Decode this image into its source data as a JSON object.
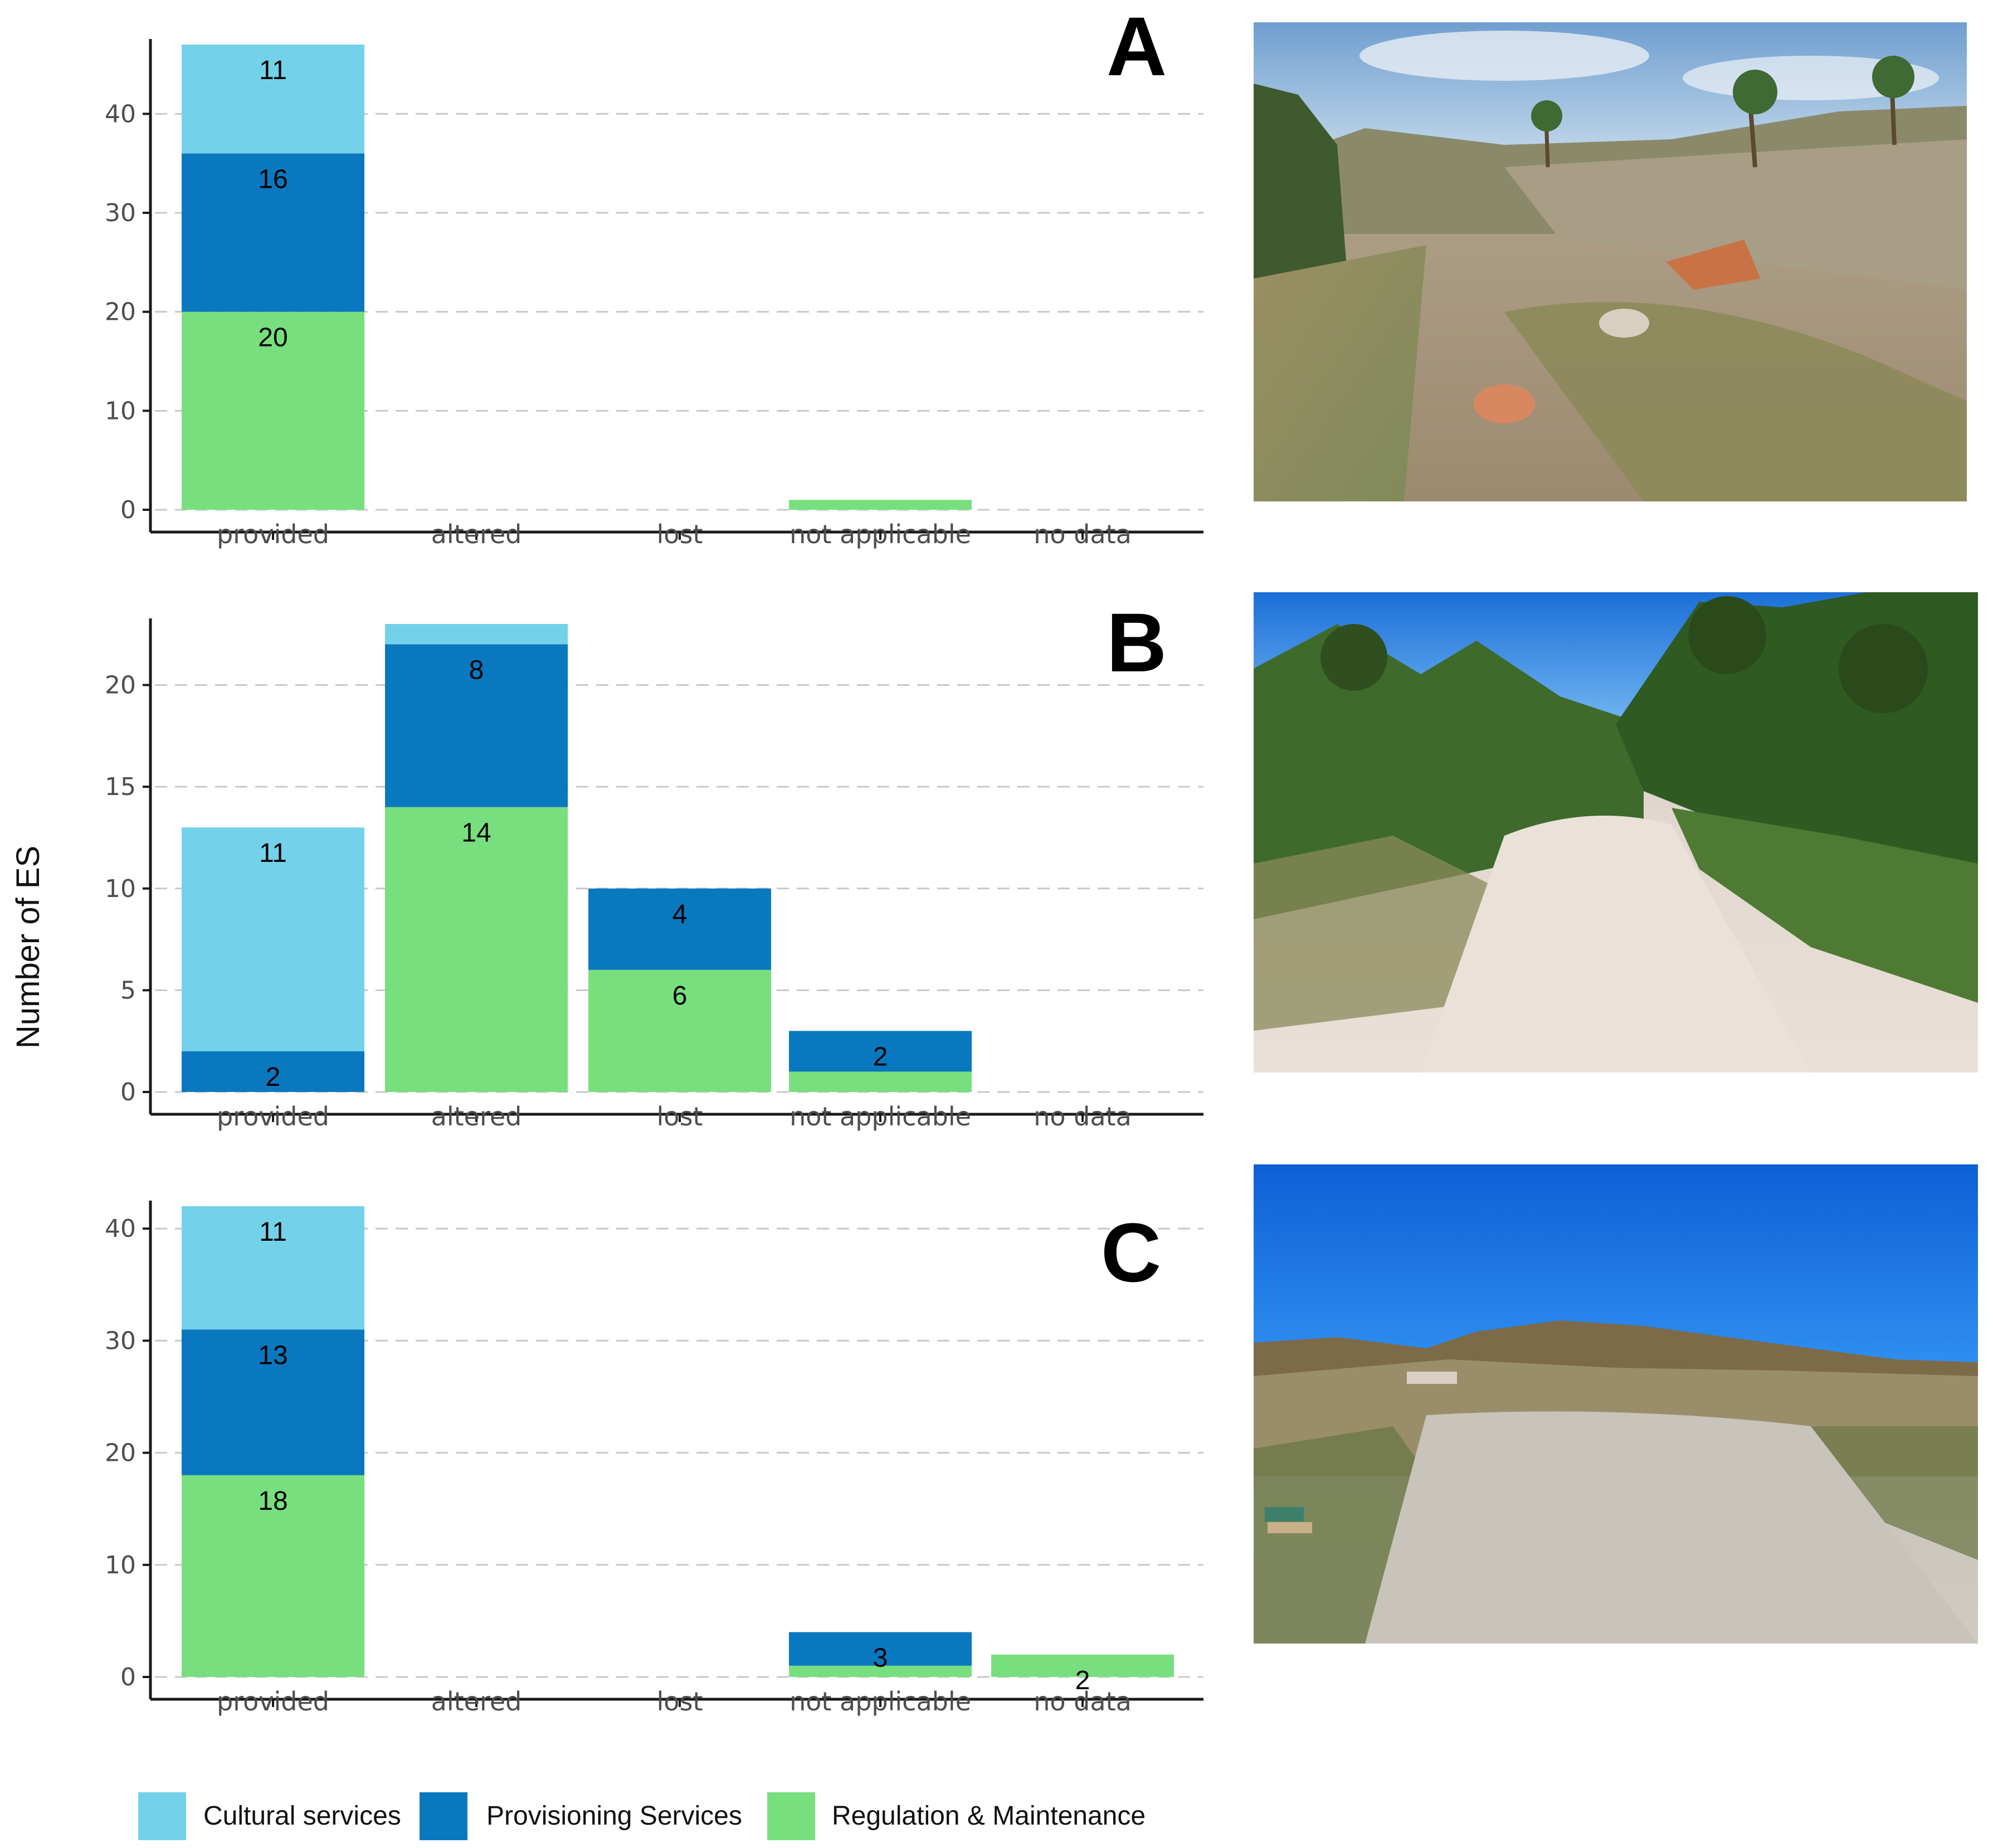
{
  "chart_data": [
    {
      "type": "bar",
      "panel_label": "A",
      "categories": [
        "provided",
        "altered",
        "lost",
        "not applicable",
        "no data"
      ],
      "ylim": [
        0,
        47
      ],
      "yticks": [
        0,
        10,
        20,
        30,
        40
      ],
      "grid": "dashed horizontal",
      "series": [
        {
          "name": "Regulation & Maintenance",
          "values": [
            20,
            0,
            0,
            1,
            0
          ],
          "labels": [
            "20",
            "",
            "",
            "",
            ""
          ]
        },
        {
          "name": "Provisioning Services",
          "values": [
            16,
            0,
            0,
            0,
            0
          ],
          "labels": [
            "16",
            "",
            "",
            "",
            ""
          ]
        },
        {
          "name": "Cultural services",
          "values": [
            11,
            0,
            0,
            0,
            0
          ],
          "labels": [
            "11",
            "",
            "",
            "",
            ""
          ]
        }
      ]
    },
    {
      "type": "bar",
      "panel_label": "B",
      "categories": [
        "provided",
        "altered",
        "lost",
        "not applicable",
        "no data"
      ],
      "ylim": [
        0,
        23
      ],
      "yticks": [
        0,
        5,
        10,
        15,
        20
      ],
      "grid": "dashed horizontal",
      "series": [
        {
          "name": "Regulation & Maintenance",
          "values": [
            0,
            14,
            6,
            1,
            0
          ],
          "labels": [
            "",
            "14",
            "6",
            "",
            ""
          ]
        },
        {
          "name": "Provisioning Services",
          "values": [
            2,
            8,
            4,
            2,
            0
          ],
          "labels": [
            "2",
            "8",
            "4",
            "2",
            ""
          ]
        },
        {
          "name": "Cultural services",
          "values": [
            11,
            1,
            0,
            0,
            0
          ],
          "labels": [
            "11",
            "",
            "",
            "",
            ""
          ]
        }
      ]
    },
    {
      "type": "bar",
      "panel_label": "C",
      "categories": [
        "provided",
        "altered",
        "lost",
        "not applicable",
        "no data"
      ],
      "ylim": [
        0,
        42
      ],
      "yticks": [
        0,
        10,
        20,
        30,
        40
      ],
      "grid": "dashed horizontal",
      "series": [
        {
          "name": "Regulation & Maintenance",
          "values": [
            18,
            0,
            0,
            1,
            2
          ],
          "labels": [
            "18",
            "",
            "",
            "",
            "2"
          ]
        },
        {
          "name": "Provisioning Services",
          "values": [
            13,
            0,
            0,
            3,
            0
          ],
          "labels": [
            "13",
            "",
            "",
            "3",
            ""
          ]
        },
        {
          "name": "Cultural services",
          "values": [
            11,
            0,
            0,
            0,
            0
          ],
          "labels": [
            "11",
            "",
            "",
            "",
            ""
          ]
        }
      ]
    }
  ],
  "ylabel": "Number of ES",
  "legend": {
    "position": "bottom",
    "items": [
      {
        "label": "Cultural services",
        "color": "#73d2ea"
      },
      {
        "label": "Provisioning Services",
        "color": "#0a78bf"
      },
      {
        "label": "Regulation & Maintenance",
        "color": "#78df7e"
      }
    ]
  },
  "colors": {
    "Cultural services": "#73d2ea",
    "Provisioning Services": "#0a78bf",
    "Regulation & Maintenance": "#78df7e"
  },
  "photos": [
    {
      "panel": "A",
      "scene": "riverbed-with-shallow-water-and-palms"
    },
    {
      "panel": "B",
      "scene": "dry-gravel-channel-among-pines-and-shrubs"
    },
    {
      "panel": "C",
      "scene": "dry-gravel-riverbed-under-blue-sky-with-hills"
    }
  ]
}
